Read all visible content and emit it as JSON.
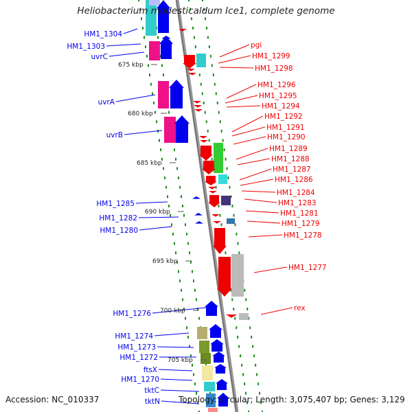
{
  "title": "Heliobacterium modesticaldum Ice1, complete genome",
  "footer": {
    "accession": "Accession: NC_010337",
    "summary": "Topology: circular; Length: 3,075,407 bp; Genes: 3,129"
  },
  "colors": {
    "strand_minus": "#0000ee",
    "strand_plus": "#ee0000",
    "backbone": "#888888",
    "tick": "#1a8a1a"
  },
  "kbp_ticks": [
    "675 kbp",
    "680 kbp",
    "685 kbp",
    "690 kbp",
    "695 kbp",
    "700 kbp",
    "705 kbp"
  ],
  "left_labels": [
    "HM1_1304",
    "HM1_1303",
    "uvrC",
    "uvrA",
    "uvrB",
    "HM1_1285",
    "HM1_1282",
    "HM1_1280",
    "HM1_1276",
    "HM1_1274",
    "HM1_1273",
    "HM1_1272",
    "ftsX",
    "HM1_1270",
    "tktC",
    "tktN"
  ],
  "right_labels": [
    "pgi",
    "HM1_1299",
    "HM1_1298",
    "HM1_1296",
    "HM1_1295",
    "HM1_1294",
    "HM1_1292",
    "HM1_1291",
    "HM1_1290",
    "HM1_1289",
    "HM1_1288",
    "HM1_1287",
    "HM1_1286",
    "HM1_1284",
    "HM1_1283",
    "HM1_1281",
    "HM1_1279",
    "HM1_1278",
    "HM1_1277",
    "rex"
  ]
}
